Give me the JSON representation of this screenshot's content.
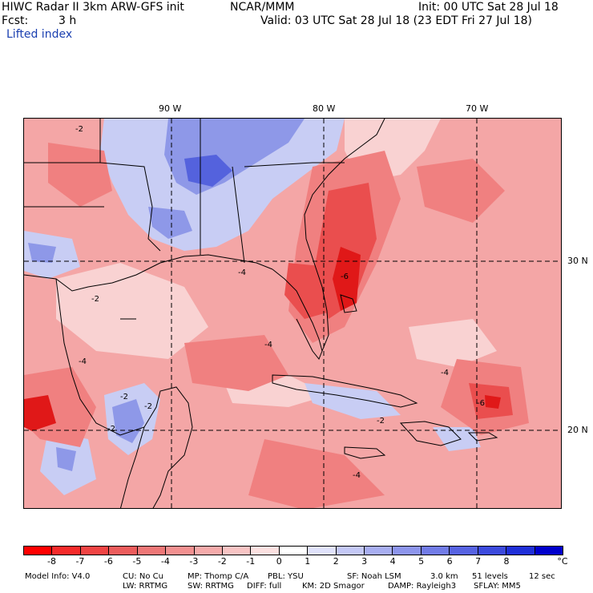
{
  "header": {
    "model_title": "HIWC Radar II 3km ARW-GFS init",
    "org": "NCAR/MMM",
    "init": "Init: 00 UTC Sat 28 Jul 18",
    "fcst_label": "Fcst:",
    "fcst_value": "3 h",
    "valid": "Valid: 03 UTC Sat 28 Jul 18 (23 EDT Fri 27 Jul 18)",
    "field": "Lifted index"
  },
  "map": {
    "lon_labels": [
      "90 W",
      "80 W",
      "70 W"
    ],
    "lat_labels": [
      "30 N",
      "20 N"
    ],
    "contour_labels": [
      "-2",
      "-2",
      "-4",
      "-2",
      "-2",
      "-2",
      "-4",
      "-4",
      "-4",
      "-6",
      "-2",
      "-6",
      "-4"
    ],
    "colors": {
      "base": "#f4a6a6",
      "light": "#f9d2d2",
      "medium": "#f08080",
      "strong": "#ea4e4e",
      "deep": "#e01818",
      "stable_light": "#c8cdf4",
      "stable": "#8e98e8",
      "stable_deep": "#5462dd"
    }
  },
  "legend": {
    "labels": [
      "-8",
      "-7",
      "-6",
      "-5",
      "-4",
      "-3",
      "-2",
      "-1",
      "0",
      "1",
      "2",
      "3",
      "4",
      "5",
      "6",
      "7",
      "8"
    ],
    "unit": "°C",
    "colors": [
      "#ff0000",
      "#f52a2a",
      "#f04444",
      "#ec5c5c",
      "#ee7777",
      "#f29090",
      "#f5aaaa",
      "#f8c4c4",
      "#fbe0e0",
      "#ffffff",
      "#e0e2fb",
      "#c4c8f6",
      "#a8aef1",
      "#8d95ec",
      "#727ce7",
      "#5763e2",
      "#3c4add",
      "#1f2fd8",
      "#0000cc"
    ]
  },
  "footer": {
    "line1": [
      "Model Info: V4.0",
      "CU: No Cu",
      "MP: Thomp C/A",
      "PBL: YSU",
      "SF: Noah LSM",
      "3.0 km",
      "51 levels",
      "12 sec"
    ],
    "line2": [
      "LW: RRTMG",
      "SW: RRTMG",
      "DIFF: full",
      "KM: 2D Smagor",
      "DAMP: Rayleigh3",
      "SFLAY: MM5"
    ]
  }
}
